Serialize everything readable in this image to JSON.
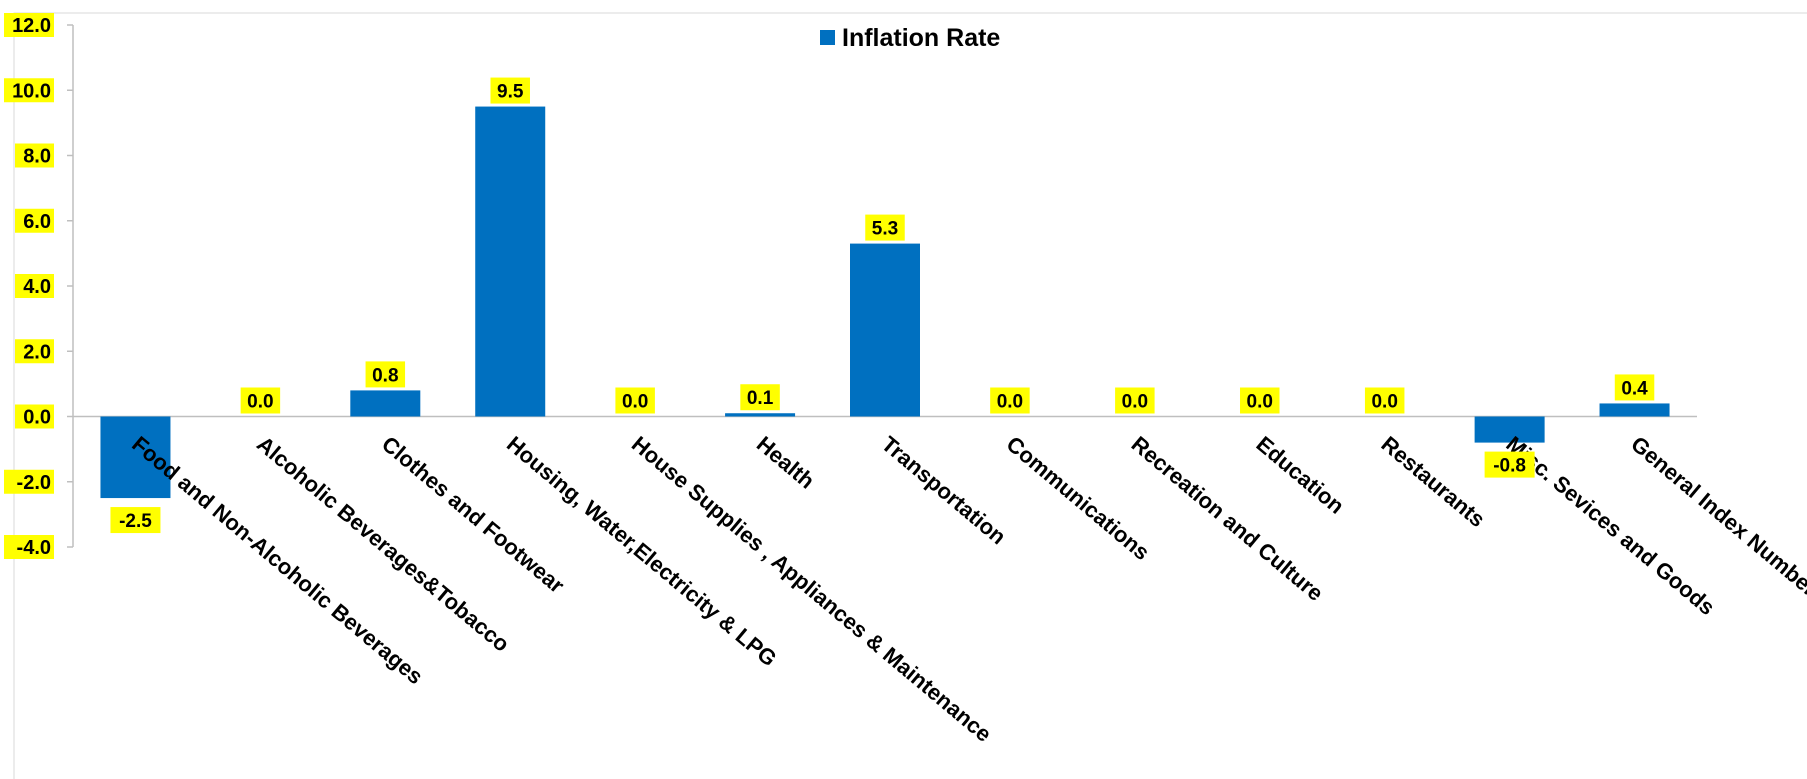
{
  "chart_data": {
    "type": "bar",
    "title": "",
    "xlabel": "",
    "ylabel": "",
    "categories": [
      "Food and Non-Alcoholic Beverages",
      "Alcoholic Beverages&Tobacco",
      "Clothes and Footwear",
      "Housing, Water,Electricity & LPG",
      "House Supplies , Appliances & Maintenance",
      "Health",
      "Transportation",
      "Communications",
      "Recreation and Culture",
      "Education",
      "Restaurants",
      "Misc. Sevices and Goods",
      "General Index Number"
    ],
    "series": [
      {
        "name": "Inflation Rate",
        "values": [
          -2.5,
          0.0,
          0.8,
          9.5,
          0.0,
          0.1,
          5.3,
          0.0,
          0.0,
          0.0,
          0.0,
          -0.8,
          0.4
        ],
        "labels": [
          "-2.5",
          "0.0",
          "0.8",
          "9.5",
          "0.0",
          "0.1",
          "5.3",
          "0.0",
          "0.0",
          "0.0",
          "0.0",
          "-0.8",
          "0.4"
        ]
      }
    ],
    "ylim": [
      -4.0,
      12.0
    ],
    "yticks": [
      "12.0",
      "10.0",
      "8.0",
      "6.0",
      "4.0",
      "2.0",
      "0.0",
      "-2.0",
      "-4.0"
    ],
    "grid": false,
    "legend": "top-center",
    "colors": {
      "bar": "#0070C0",
      "label_background": "#FFFF00",
      "axis": "#BFBFBF",
      "border": "#D9D9D9"
    }
  }
}
